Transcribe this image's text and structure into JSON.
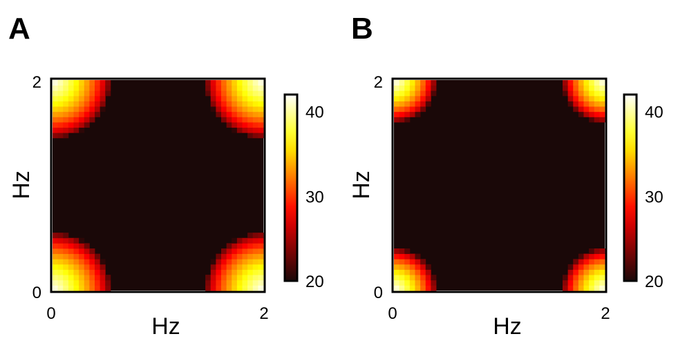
{
  "chart_data": [
    {
      "type": "heatmap",
      "panel_label": "A",
      "title": "",
      "xlabel": "Hz",
      "ylabel": "Hz",
      "xlim": [
        0,
        2
      ],
      "ylim": [
        0,
        2
      ],
      "x_ticks": [
        "0",
        "2"
      ],
      "y_ticks": [
        "0",
        "2"
      ],
      "grid_size": 40,
      "value_range": [
        20,
        42
      ],
      "colorbar": {
        "ticks": [
          "20",
          "30",
          "40"
        ],
        "tick_values": [
          20,
          30,
          40
        ],
        "range": [
          20,
          42
        ],
        "colormap": "hot",
        "placement": "right"
      },
      "peaks": [
        {
          "x": 0,
          "y": 0,
          "peak_value": 42
        },
        {
          "x": 2,
          "y": 0,
          "peak_value": 42
        },
        {
          "x": 0,
          "y": 2,
          "peak_value": 42
        },
        {
          "x": 2,
          "y": 2,
          "peak_value": 42
        }
      ],
      "background_value": 20,
      "peak_radius_hz": 0.55
    },
    {
      "type": "heatmap",
      "panel_label": "B",
      "title": "",
      "xlabel": "Hz",
      "ylabel": "Hz",
      "xlim": [
        0,
        2
      ],
      "ylim": [
        0,
        2
      ],
      "x_ticks": [
        "0",
        "2"
      ],
      "y_ticks": [
        "0",
        "2"
      ],
      "grid_size": 40,
      "value_range": [
        20,
        42
      ],
      "colorbar": {
        "ticks": [
          "20",
          "30",
          "40"
        ],
        "tick_values": [
          20,
          30,
          40
        ],
        "range": [
          20,
          42
        ],
        "colormap": "hot",
        "placement": "right"
      },
      "peaks": [
        {
          "x": 0,
          "y": 0,
          "peak_value": 42
        },
        {
          "x": 2,
          "y": 0,
          "peak_value": 42
        },
        {
          "x": 0,
          "y": 2,
          "peak_value": 42
        },
        {
          "x": 2,
          "y": 2,
          "peak_value": 42
        }
      ],
      "background_value": 20,
      "peak_radius_hz": 0.4
    }
  ]
}
